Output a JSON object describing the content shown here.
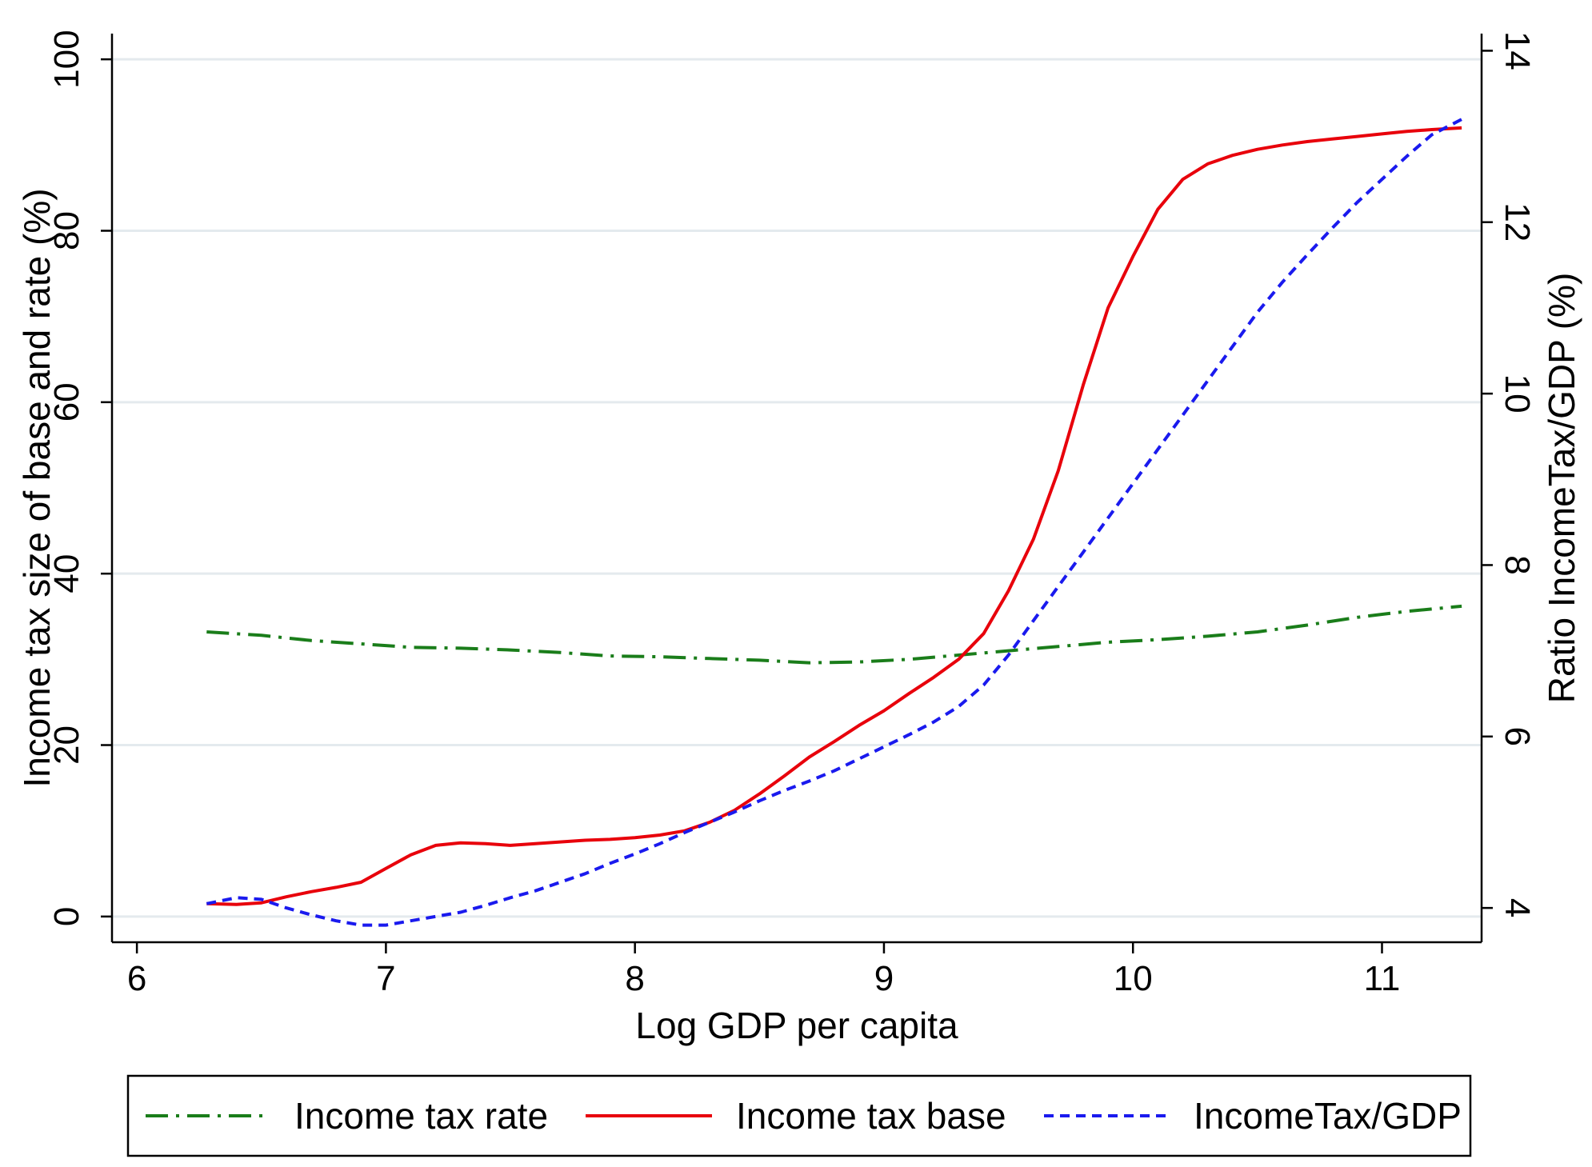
{
  "chart_data": {
    "type": "line",
    "xlabel": "Log GDP per capita",
    "ylabel_left": "Income tax size of base and rate (%)",
    "ylabel_right": "Ratio IncomeTax/GDP (%)",
    "xlim": [
      5.9,
      11.4
    ],
    "ylim_left": [
      -3,
      103
    ],
    "ylim_right": [
      3.6,
      14.2
    ],
    "x_ticks": [
      6,
      7,
      8,
      9,
      10,
      11
    ],
    "y_left_ticks": [
      0,
      20,
      40,
      60,
      80,
      100
    ],
    "y_right_ticks": [
      4,
      6,
      8,
      10,
      12,
      14
    ],
    "grid": true,
    "legend_position": "bottom",
    "series": [
      {
        "name": "Income tax rate",
        "axis": "left",
        "color": "#1a7d1a",
        "style": "dashdot",
        "x": [
          6.28,
          6.5,
          6.7,
          6.9,
          7.1,
          7.3,
          7.5,
          7.7,
          7.9,
          8.1,
          8.3,
          8.5,
          8.7,
          8.9,
          9.1,
          9.3,
          9.5,
          9.7,
          9.9,
          10.1,
          10.3,
          10.5,
          10.7,
          10.9,
          11.1,
          11.32
        ],
        "values": [
          33.2,
          32.8,
          32.2,
          31.8,
          31.4,
          31.3,
          31.1,
          30.8,
          30.4,
          30.3,
          30.1,
          29.9,
          29.6,
          29.7,
          30.0,
          30.5,
          31.0,
          31.5,
          32.0,
          32.3,
          32.7,
          33.2,
          34.0,
          34.9,
          35.6,
          36.2
        ]
      },
      {
        "name": "Income tax base",
        "axis": "left",
        "color": "#e8000b",
        "style": "solid",
        "x": [
          6.28,
          6.4,
          6.5,
          6.6,
          6.7,
          6.8,
          6.9,
          7.0,
          7.1,
          7.2,
          7.3,
          7.4,
          7.5,
          7.6,
          7.7,
          7.8,
          7.9,
          8.0,
          8.1,
          8.2,
          8.3,
          8.4,
          8.5,
          8.6,
          8.7,
          8.8,
          8.9,
          9.0,
          9.1,
          9.2,
          9.3,
          9.4,
          9.5,
          9.6,
          9.7,
          9.8,
          9.9,
          10.0,
          10.1,
          10.2,
          10.3,
          10.4,
          10.5,
          10.6,
          10.7,
          10.8,
          10.9,
          11.0,
          11.1,
          11.2,
          11.32
        ],
        "values": [
          1.5,
          1.4,
          1.6,
          2.3,
          2.9,
          3.4,
          4.0,
          5.6,
          7.2,
          8.3,
          8.6,
          8.5,
          8.3,
          8.5,
          8.7,
          8.9,
          9.0,
          9.2,
          9.5,
          10.0,
          11.0,
          12.4,
          14.3,
          16.4,
          18.6,
          20.4,
          22.3,
          24.0,
          26.0,
          27.9,
          30.0,
          33.0,
          38.0,
          44.0,
          52.0,
          62.0,
          71.0,
          77.0,
          82.5,
          86.0,
          87.8,
          88.8,
          89.5,
          90.0,
          90.4,
          90.7,
          91.0,
          91.3,
          91.6,
          91.8,
          92.0
        ]
      },
      {
        "name": "IncomeTax/GDP",
        "axis": "right",
        "color": "#1a1aee",
        "style": "dashed",
        "x": [
          6.28,
          6.4,
          6.5,
          6.6,
          6.7,
          6.8,
          6.9,
          7.0,
          7.1,
          7.2,
          7.3,
          7.4,
          7.5,
          7.6,
          7.7,
          7.8,
          7.9,
          8.0,
          8.1,
          8.2,
          8.3,
          8.4,
          8.5,
          8.6,
          8.7,
          8.8,
          8.9,
          9.0,
          9.1,
          9.2,
          9.3,
          9.4,
          9.5,
          9.6,
          9.7,
          9.8,
          9.9,
          10.0,
          10.1,
          10.2,
          10.3,
          10.4,
          10.5,
          10.6,
          10.7,
          10.8,
          10.9,
          11.0,
          11.1,
          11.2,
          11.32
        ],
        "values": [
          4.05,
          4.12,
          4.1,
          4.0,
          3.92,
          3.85,
          3.8,
          3.8,
          3.85,
          3.9,
          3.95,
          4.03,
          4.12,
          4.2,
          4.3,
          4.4,
          4.52,
          4.63,
          4.75,
          4.88,
          5.0,
          5.12,
          5.25,
          5.37,
          5.48,
          5.6,
          5.74,
          5.88,
          6.02,
          6.17,
          6.35,
          6.6,
          6.95,
          7.35,
          7.75,
          8.15,
          8.55,
          8.95,
          9.35,
          9.75,
          10.15,
          10.55,
          10.95,
          11.3,
          11.62,
          11.93,
          12.23,
          12.5,
          12.77,
          13.02,
          13.2
        ]
      }
    ]
  }
}
